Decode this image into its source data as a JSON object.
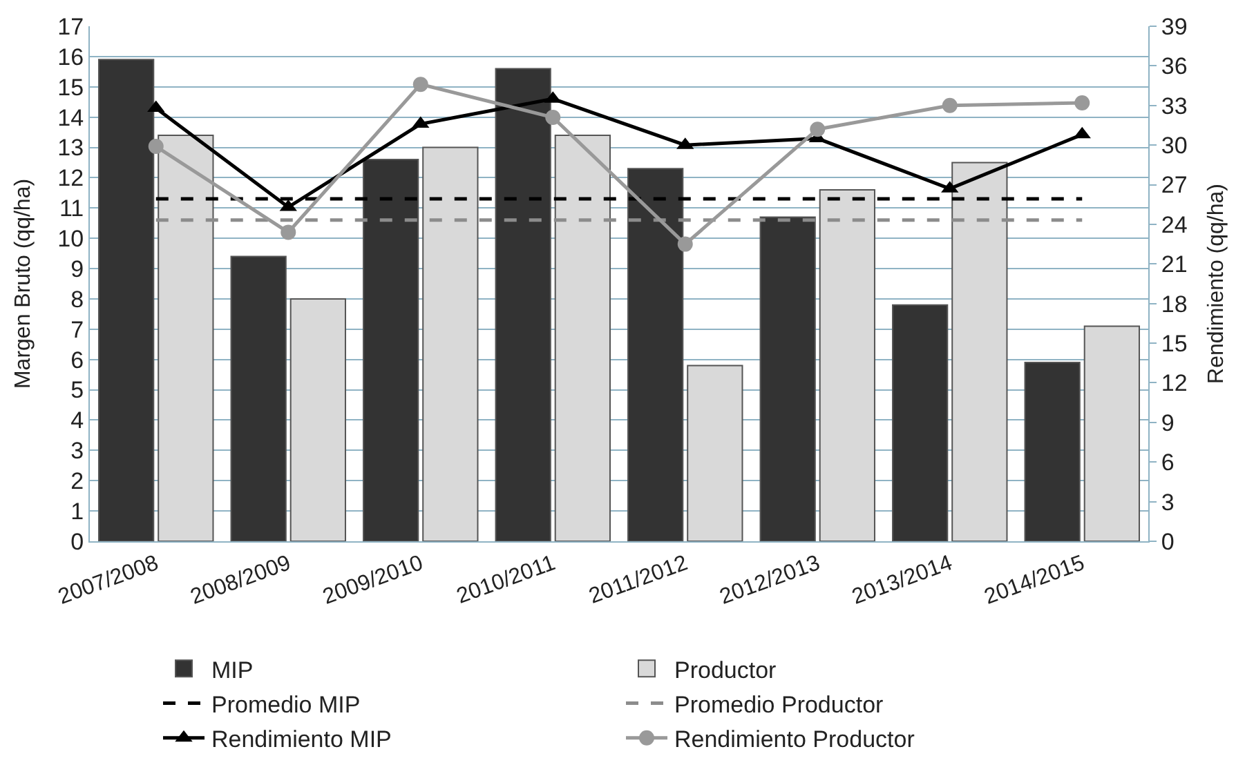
{
  "chart_data": {
    "type": "bar",
    "ylabel": "Margen Bruto (qq/ha)",
    "y2label": "Rendimiento (qq/ha)",
    "categories": [
      "2007/2008",
      "2008/2009",
      "2009/2010",
      "2010/2011",
      "2011/2012",
      "2012/2013",
      "2013/2014",
      "2014/2015"
    ],
    "series": [
      {
        "name": "MIP",
        "color": "#333333",
        "values": [
          15.9,
          9.4,
          12.6,
          15.6,
          12.3,
          10.7,
          7.8,
          5.9
        ]
      },
      {
        "name": "Productor",
        "color": "#d9d9d9",
        "values": [
          13.4,
          8.0,
          13.0,
          13.4,
          5.8,
          11.6,
          12.5,
          7.1
        ]
      },
      {
        "name": "Promedio MIP",
        "type": "line",
        "color": "#000000",
        "line_style": "dashed",
        "marker": "none",
        "values": [
          11.3,
          11.3,
          11.3,
          11.3,
          11.3,
          11.3,
          11.3,
          11.3
        ]
      },
      {
        "name": "Promedio Productor",
        "type": "line",
        "color": "#8c8c8c",
        "line_style": "dashed",
        "marker": "none",
        "values": [
          10.6,
          10.6,
          10.6,
          10.6,
          10.6,
          10.6,
          10.6,
          10.6
        ]
      },
      {
        "name": "Rendimiento MIP",
        "type": "line",
        "axis": "y2",
        "color": "#000000",
        "line_style": "solid",
        "marker": "triangle",
        "values": [
          32.8,
          25.3,
          31.6,
          33.5,
          30.0,
          30.5,
          26.7,
          30.8
        ]
      },
      {
        "name": "Rendimiento Productor",
        "type": "line",
        "axis": "y2",
        "color": "#999999",
        "line_style": "solid",
        "marker": "circle",
        "values": [
          29.9,
          23.4,
          34.6,
          32.1,
          22.5,
          31.2,
          33.0,
          33.2
        ]
      }
    ],
    "ylim": [
      0,
      17
    ],
    "yticks": [
      0,
      1,
      2,
      3,
      4,
      5,
      6,
      7,
      8,
      9,
      10,
      11,
      12,
      13,
      14,
      15,
      16,
      17
    ],
    "y2lim": [
      0,
      39
    ],
    "y2ticks": [
      0,
      3,
      6,
      9,
      12,
      15,
      18,
      21,
      24,
      27,
      30,
      33,
      36,
      39
    ],
    "grid": "y",
    "legend": "bottom"
  }
}
